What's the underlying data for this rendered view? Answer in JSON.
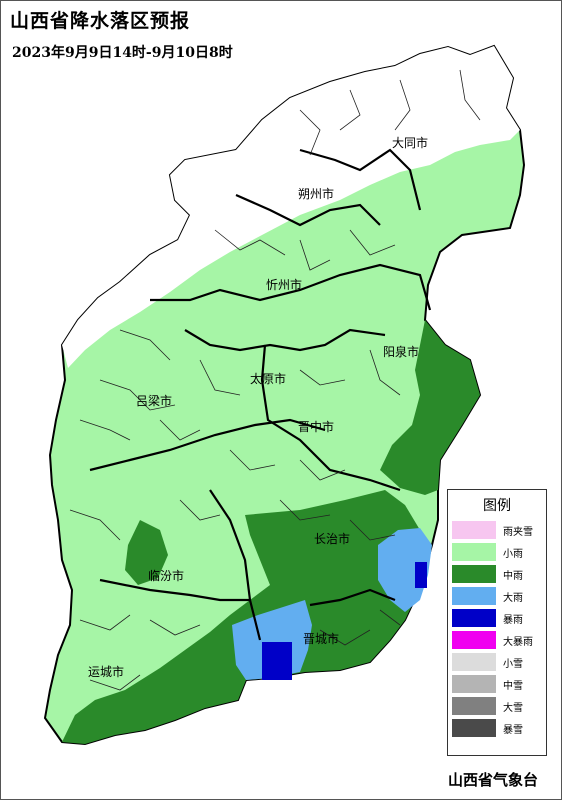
{
  "title": "山西省降水落区预报",
  "subtitle": "2023年9月9日14时-9月10日8时",
  "agency": "山西省气象台",
  "cities": {
    "datong": "大同市",
    "shuozhou": "朔州市",
    "xinzhou": "忻州市",
    "yangquan": "阳泉市",
    "taiyuan": "太原市",
    "lvliang": "吕梁市",
    "jinzhong": "晋中市",
    "changzhi": "长治市",
    "linfen": "临汾市",
    "jincheng": "晋城市",
    "yuncheng": "运城市"
  },
  "legend": {
    "title": "图例",
    "items": [
      {
        "label": "雨夹雪",
        "color": "#f7c6f0"
      },
      {
        "label": "小雨",
        "color": "#a6f5a6"
      },
      {
        "label": "中雨",
        "color": "#2a8a2a"
      },
      {
        "label": "大雨",
        "color": "#62aef0"
      },
      {
        "label": "暴雨",
        "color": "#0000c8"
      },
      {
        "label": "大暴雨",
        "color": "#f000f0"
      },
      {
        "label": "小雪",
        "color": "#dcdcdc"
      },
      {
        "label": "中雪",
        "color": "#b4b4b4"
      },
      {
        "label": "大雪",
        "color": "#808080"
      },
      {
        "label": "暴雪",
        "color": "#4a4a4a"
      }
    ]
  }
}
